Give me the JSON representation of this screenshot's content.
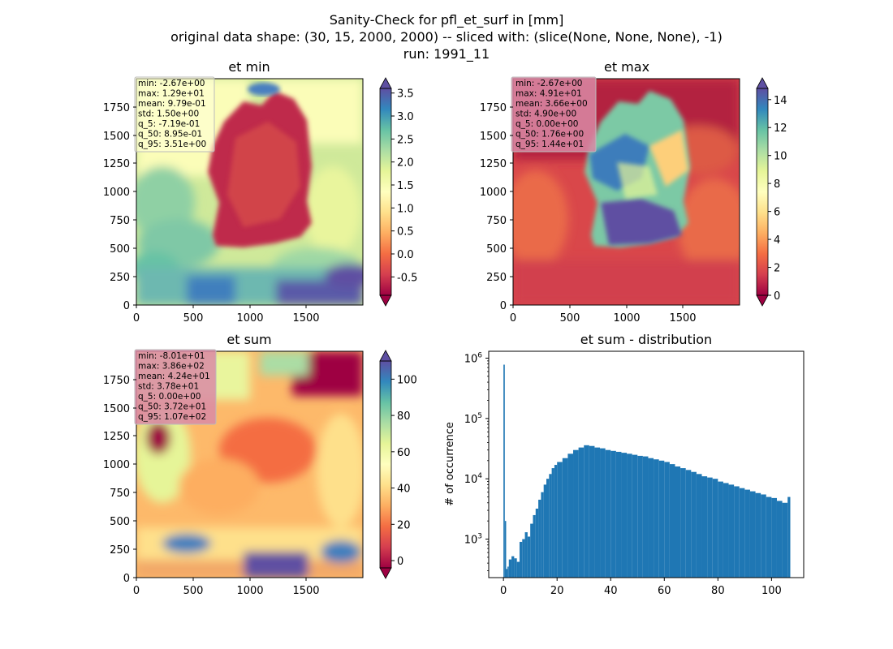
{
  "figure": {
    "title_lines": [
      "Sanity-Check for pfl_et_surf in [mm]",
      "original data shape: (30, 15, 2000, 2000) -- sliced with: (slice(None, None, None), -1)",
      "run: 1991_11"
    ]
  },
  "chart_data": [
    {
      "type": "heatmap",
      "title": "et min",
      "xticks": [
        "0",
        "500",
        "1000",
        "1500"
      ],
      "yticks": [
        "0",
        "250",
        "500",
        "750",
        "1000",
        "1250",
        "1500",
        "1750"
      ],
      "xlim": [
        0,
        2000
      ],
      "ylim": [
        0,
        2000
      ],
      "colormap": "Spectral",
      "colorbar": {
        "ticks": [
          "-0.5",
          "0.0",
          "0.5",
          "1.0",
          "1.5",
          "2.0",
          "2.5",
          "3.0",
          "3.5"
        ],
        "tick_values": [
          -0.5,
          0.0,
          0.5,
          1.0,
          1.5,
          2.0,
          2.5,
          3.0,
          3.5
        ],
        "range": [
          -0.9,
          3.6
        ],
        "extend": "both"
      },
      "stats": [
        "min: -2.67e+00",
        "max: 1.29e+01",
        "mean: 9.79e-01",
        "std: 1.50e+00",
        "q_5: -7.19e-01",
        "q_50: 8.95e-01",
        "q_95: 3.51e+00"
      ],
      "stats_box_color": "#ffffd9"
    },
    {
      "type": "heatmap",
      "title": "et max",
      "xticks": [
        "0",
        "500",
        "1000",
        "1500"
      ],
      "yticks": [
        "0",
        "250",
        "500",
        "750",
        "1000",
        "1250",
        "1500",
        "1750"
      ],
      "xlim": [
        0,
        2000
      ],
      "ylim": [
        0,
        2000
      ],
      "colormap": "Spectral",
      "colorbar": {
        "ticks": [
          "0",
          "2",
          "4",
          "6",
          "8",
          "10",
          "12",
          "14"
        ],
        "tick_values": [
          0,
          2,
          4,
          6,
          8,
          10,
          12,
          14
        ],
        "range": [
          0,
          14.8
        ],
        "extend": "both"
      },
      "stats": [
        "min: -2.67e+00",
        "max: 4.91e+01",
        "mean: 3.66e+00",
        "std: 4.90e+00",
        "q_5: 0.00e+00",
        "q_50: 1.76e+00",
        "q_95: 1.44e+01"
      ],
      "stats_box_color": "#d98aa6"
    },
    {
      "type": "heatmap",
      "title": "et sum",
      "xticks": [
        "0",
        "500",
        "1000",
        "1500"
      ],
      "yticks": [
        "0",
        "250",
        "500",
        "750",
        "1000",
        "1250",
        "1500",
        "1750"
      ],
      "xlim": [
        0,
        2000
      ],
      "ylim": [
        0,
        2000
      ],
      "colormap": "Spectral",
      "colorbar": {
        "ticks": [
          "0",
          "20",
          "40",
          "60",
          "80",
          "100"
        ],
        "tick_values": [
          0,
          20,
          40,
          60,
          80,
          100
        ],
        "range": [
          -4,
          110
        ],
        "extend": "both"
      },
      "stats": [
        "min: -8.01e+01",
        "max: 3.86e+02",
        "mean: 4.24e+01",
        "std: 3.78e+01",
        "q_5: 0.00e+00",
        "q_50: 3.72e+01",
        "q_95: 1.07e+02"
      ],
      "stats_box_color": "#d98aa6"
    },
    {
      "type": "bar",
      "title": "et sum - distribution",
      "ylabel": "# of occurrence",
      "xlabel": "",
      "xticks": [
        0,
        20,
        40,
        60,
        80,
        100
      ],
      "xlim": [
        -5.5,
        112
      ],
      "ylim": [
        230,
        1300000
      ],
      "yscale": "log",
      "ytick_labels": [
        {
          "base": "10",
          "exp": "3",
          "value": 1000
        },
        {
          "base": "10",
          "exp": "4",
          "value": 10000
        },
        {
          "base": "10",
          "exp": "5",
          "value": 100000
        },
        {
          "base": "10",
          "exp": "6",
          "value": 1000000
        }
      ],
      "bar_color": "#1f77b4",
      "bins": [
        0,
        0.5,
        1,
        1.5,
        2,
        3,
        4,
        5,
        6,
        7,
        8,
        9,
        10,
        11,
        12,
        13,
        14,
        15,
        16,
        17,
        18,
        19,
        20,
        22,
        24,
        26,
        28,
        30,
        32,
        34,
        36,
        38,
        40,
        42,
        44,
        46,
        48,
        50,
        52,
        54,
        56,
        58,
        60,
        62,
        64,
        66,
        68,
        70,
        72,
        74,
        76,
        78,
        80,
        82,
        84,
        86,
        88,
        90,
        92,
        94,
        96,
        98,
        100,
        102,
        104,
        106,
        107
      ],
      "counts": [
        780000,
        2000,
        320,
        350,
        460,
        520,
        480,
        420,
        900,
        1000,
        1300,
        1100,
        1800,
        2500,
        3200,
        4500,
        6000,
        8000,
        10000,
        12000,
        15000,
        17000,
        19000,
        22000,
        26000,
        30000,
        33000,
        36000,
        35000,
        33000,
        32000,
        30000,
        29000,
        28000,
        27000,
        26000,
        25000,
        24000,
        23500,
        22000,
        21000,
        20000,
        19000,
        17500,
        16000,
        15000,
        14000,
        13000,
        12000,
        11000,
        10500,
        10000,
        9000,
        8500,
        8000,
        7500,
        7000,
        6600,
        6200,
        5800,
        5500,
        5000,
        4800,
        4300,
        4000,
        5000
      ]
    }
  ]
}
